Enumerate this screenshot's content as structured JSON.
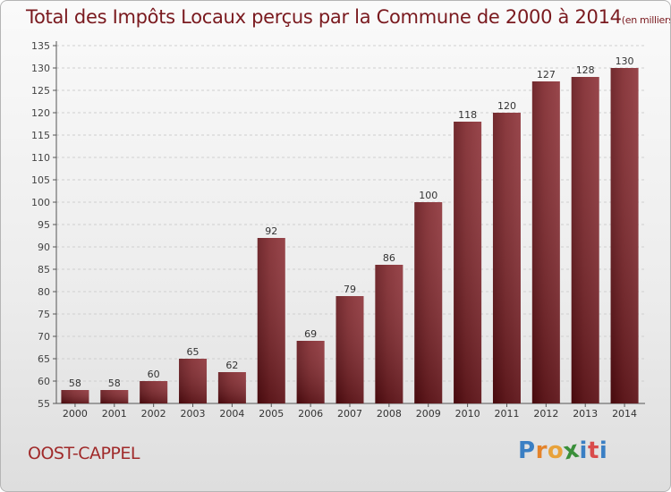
{
  "chart_data": {
    "type": "bar",
    "title": "Total des Impôts Locaux perçus par la Commune de 2000 à 2014",
    "unit_note": "(en milliers d'€)",
    "categories": [
      "2000",
      "2001",
      "2002",
      "2003",
      "2004",
      "2005",
      "2006",
      "2007",
      "2008",
      "2009",
      "2010",
      "2011",
      "2012",
      "2013",
      "2014"
    ],
    "values": [
      58,
      58,
      60,
      65,
      62,
      92,
      69,
      79,
      86,
      100,
      118,
      120,
      127,
      128,
      130
    ],
    "ylim": [
      55,
      135
    ],
    "yticks": [
      55,
      60,
      65,
      70,
      75,
      80,
      85,
      90,
      95,
      100,
      105,
      110,
      115,
      120,
      125,
      130,
      135
    ],
    "xlabel": "",
    "ylabel": "",
    "grid": true,
    "bar_color": "#7a1f24"
  },
  "commune": "OOST-CAPPEL",
  "logo": {
    "letters": [
      "P",
      "r",
      "o",
      "x",
      "i",
      "t",
      "i"
    ],
    "colors": [
      "#3a7fc4",
      "#e4832a",
      "#e8a23a",
      "#3a8f3a",
      "#3a7fc4",
      "#d94b4b",
      "#3a7fc4"
    ]
  }
}
